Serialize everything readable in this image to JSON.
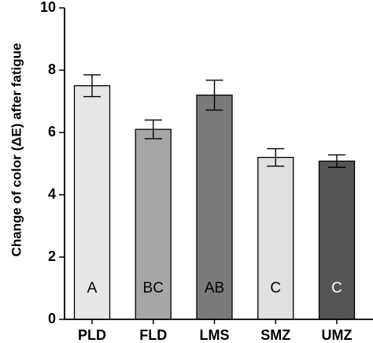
{
  "chart_data": {
    "type": "bar",
    "title": "",
    "xlabel": "",
    "ylabel": "Change of color (ΔE) after fatigue",
    "ylim": [
      0,
      10
    ],
    "yticks": [
      0,
      2,
      4,
      6,
      8,
      10
    ],
    "grid": false,
    "categories": [
      "PLD",
      "FLD",
      "LMS",
      "SMZ",
      "UMZ"
    ],
    "values": [
      7.5,
      6.1,
      7.2,
      5.2,
      5.08
    ],
    "errors": [
      0.35,
      0.3,
      0.48,
      0.28,
      0.2
    ],
    "group_labels": [
      "A",
      "BC",
      "AB",
      "C",
      "C"
    ],
    "bar_colors": [
      "#e6e6e6",
      "#a6a6a6",
      "#7a7a7a",
      "#e0e0e0",
      "#555555"
    ],
    "label_colors": [
      "#000000",
      "#000000",
      "#000000",
      "#000000",
      "#ffffff"
    ]
  }
}
